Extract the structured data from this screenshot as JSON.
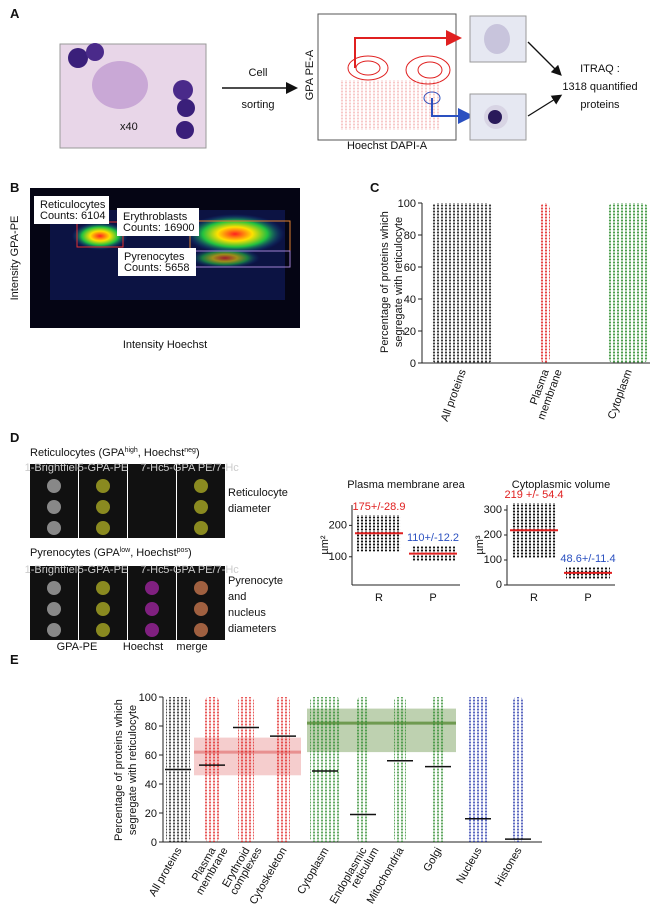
{
  "panels": {
    "a": {
      "letter": "A",
      "magnification": "x40",
      "sorting": [
        "Cell",
        "sorting"
      ],
      "flow_axes": {
        "y": "GPA PE-A",
        "x": "Hoechst DAPI-A"
      },
      "result": [
        "ITRAQ :",
        "1318 quantified",
        "proteins"
      ]
    },
    "b": {
      "letter": "B",
      "gates": [
        {
          "name": "Reticulocytes",
          "counts": "Counts: 6104"
        },
        {
          "name": "Erythroblasts",
          "counts": "Counts: 16900"
        },
        {
          "name": "Pyrenocytes",
          "counts": "Counts: 5658"
        }
      ],
      "x_label": "Intensity Hoechst",
      "y_label": "Intensity GPA-PE"
    },
    "c": {
      "letter": "C",
      "y_label": [
        "Percentage of proteins which",
        "segregate with reticulocyte"
      ],
      "categories": [
        [
          "All proteins"
        ],
        [
          "Plasma",
          "membrane"
        ],
        [
          "Cytoplasm"
        ]
      ],
      "colors": [
        "#111111",
        "#e02020",
        "#2a8a2a"
      ],
      "ylim": [
        0,
        100
      ],
      "yticks": [
        0,
        20,
        40,
        60,
        80,
        100
      ]
    },
    "d": {
      "letter": "D",
      "reticulocytes": {
        "title": [
          "Reticulocytes (GPA",
          "high",
          ", Hoechst",
          "neg",
          ")"
        ],
        "note": [
          "Reticulocyte",
          "diameter"
        ]
      },
      "pyrenocytes": {
        "title": [
          "Pyrenocytes (GPA",
          "low",
          ", Hoechst",
          "pos",
          ")"
        ],
        "note": [
          "Pyrenocyte",
          "and",
          "nucleus",
          "diameters"
        ]
      },
      "strip_headers": [
        "1-Brightfield",
        "5-GPA-PE",
        "7-Hc",
        "5-GPA PE/7-Hc"
      ],
      "channels": [
        "GPA-PE",
        "Hoechst",
        "merge"
      ],
      "plots": [
        {
          "title": "Plasma membrane area",
          "unit": "µm²",
          "categories": [
            "R",
            "P"
          ],
          "values": [
            175,
            110
          ],
          "value_labels": [
            "175+/-28.9",
            "110+/-12.2"
          ],
          "spread": [
            28.9,
            12.2
          ],
          "ylim": [
            10,
            265
          ],
          "yticks": [
            100,
            200
          ]
        },
        {
          "title": "Cytoplasmic volume",
          "unit": "µm³",
          "categories": [
            "R",
            "P"
          ],
          "values": [
            219,
            48.6
          ],
          "value_labels": [
            "219 +/- 54.4",
            "48.6+/-11.4"
          ],
          "spread": [
            54.4,
            11.4
          ],
          "ylim": [
            0,
            320
          ],
          "yticks": [
            0,
            100,
            200,
            300
          ]
        }
      ]
    },
    "e": {
      "letter": "E",
      "y_label": [
        "Percentage of proteins which",
        "segregate with reticulocyte"
      ],
      "categories": [
        "All proteins",
        "Plasma membrane",
        "Erythroid complexes",
        "Cytoskeleton",
        "Cytoplasm",
        "Endoplasmic reticulum",
        "Mitochondria",
        "Golgi",
        "Nucleus",
        "Histones"
      ],
      "category_lines": [
        [
          "All proteins"
        ],
        [
          "Plasma",
          "membrane"
        ],
        [
          "Erythroid",
          "complexes"
        ],
        [
          "Cytoskeleton"
        ],
        [
          "Cytoplasm"
        ],
        [
          "Endoplasmic",
          "reticulum"
        ],
        [
          "Mitochondria"
        ],
        [
          "Golgi"
        ],
        [
          "Nucleus"
        ],
        [
          "Histones"
        ]
      ],
      "colors": [
        "#111111",
        "#e02020",
        "#e02020",
        "#e02020",
        "#2a8a2a",
        "#2a8a2a",
        "#2a8a2a",
        "#2a8a2a",
        "#2233aa",
        "#2233aa"
      ],
      "medians": [
        50,
        53,
        79,
        73,
        49,
        19,
        56,
        52,
        16,
        2
      ],
      "bands": [
        {
          "from": 1,
          "to": 3,
          "low": 46,
          "high": 72,
          "line": 62,
          "color": "#e89090"
        },
        {
          "from": 4,
          "to": 7,
          "low": 62,
          "high": 92,
          "line": 82,
          "color": "#6f9a50"
        }
      ],
      "ylim": [
        0,
        100
      ],
      "yticks": [
        0,
        20,
        40,
        60,
        80,
        100
      ]
    }
  }
}
